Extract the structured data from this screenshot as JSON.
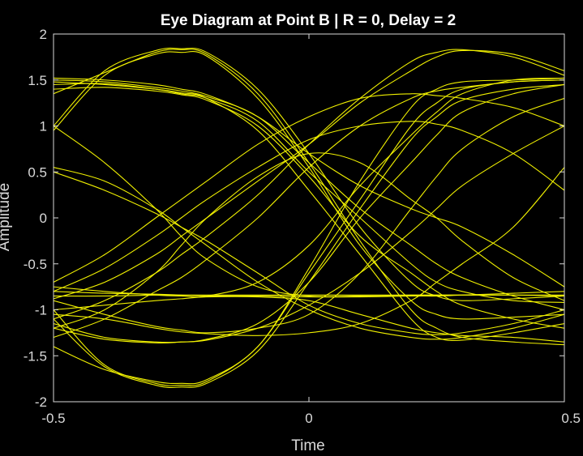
{
  "chart_data": {
    "type": "line",
    "title": "Eye Diagram at Point B | R = 0, Delay = 2",
    "xlabel": "Time",
    "ylabel": "Amplitude",
    "xlim": [
      -0.5,
      0.5
    ],
    "ylim": [
      -2,
      2
    ],
    "xticks": [
      "-0.5",
      "0",
      "0.5"
    ],
    "yticks": [
      "-2",
      "-1.5",
      "-1",
      "-0.5",
      "0",
      "0.5",
      "1",
      "1.5",
      "2"
    ],
    "grid": false,
    "legend": "none",
    "colors": {
      "background": "#000000",
      "trace": "#f0f000",
      "axes": "#d9d9d9"
    },
    "x": [
      -0.5,
      -0.4,
      -0.3,
      -0.25,
      -0.2,
      -0.1,
      0.0,
      0.1,
      0.2,
      0.25,
      0.3,
      0.4,
      0.5
    ],
    "series": [
      {
        "values": [
          1.0,
          1.6,
          1.82,
          1.84,
          1.8,
          1.4,
          0.7,
          -0.1,
          -0.7,
          -0.85,
          -0.9,
          -0.88,
          -0.85
        ]
      },
      {
        "values": [
          0.95,
          1.55,
          1.78,
          1.8,
          1.76,
          1.3,
          0.55,
          -0.3,
          -0.9,
          -1.05,
          -1.1,
          -1.08,
          -1.05
        ]
      },
      {
        "values": [
          1.35,
          1.58,
          1.8,
          1.83,
          1.78,
          1.35,
          0.6,
          -0.25,
          -1.0,
          -1.2,
          -1.3,
          -1.35,
          -1.38
        ]
      },
      {
        "values": [
          1.5,
          1.48,
          1.42,
          1.38,
          1.32,
          1.1,
          0.6,
          0.1,
          -0.3,
          -0.5,
          -0.65,
          -0.85,
          -1.0
        ]
      },
      {
        "values": [
          1.45,
          1.46,
          1.4,
          1.35,
          1.3,
          1.05,
          0.5,
          0.0,
          -0.5,
          -0.7,
          -0.8,
          -0.9,
          -0.92
        ]
      },
      {
        "values": [
          1.52,
          1.5,
          1.45,
          1.4,
          1.34,
          1.1,
          0.7,
          0.35,
          0.1,
          0.0,
          -0.1,
          -0.4,
          -0.75
        ]
      },
      {
        "values": [
          1.4,
          1.42,
          1.38,
          1.34,
          1.28,
          1.0,
          0.45,
          -0.2,
          -0.6,
          -0.8,
          -0.95,
          -1.1,
          -1.2
        ]
      },
      {
        "values": [
          1.48,
          1.45,
          1.4,
          1.36,
          1.3,
          0.95,
          0.3,
          -0.4,
          -1.1,
          -1.3,
          -1.33,
          -1.25,
          -1.15
        ]
      },
      {
        "values": [
          0.55,
          0.4,
          0.1,
          -0.1,
          -0.3,
          -0.7,
          -1.0,
          -1.2,
          -1.3,
          -1.32,
          -1.3,
          -1.2,
          -1.05
        ]
      },
      {
        "values": [
          1.0,
          0.6,
          0.1,
          -0.2,
          -0.45,
          -0.75,
          -0.85,
          -0.85,
          -0.84,
          -0.84,
          -0.84,
          -0.84,
          -0.84
        ]
      },
      {
        "values": [
          -0.85,
          -0.85,
          -0.84,
          -0.84,
          -0.84,
          -0.84,
          -0.84,
          -0.84,
          -0.84,
          -0.84,
          -0.84,
          -0.84,
          -0.85
        ]
      },
      {
        "values": [
          -0.8,
          -0.82,
          -0.83,
          -0.84,
          -0.85,
          -0.85,
          -0.86,
          -0.86,
          -0.85,
          -0.85,
          -0.84,
          -0.82,
          -0.8
        ]
      },
      {
        "values": [
          -1.0,
          -1.6,
          -1.8,
          -1.82,
          -1.78,
          -1.4,
          -0.6,
          0.2,
          1.0,
          1.25,
          1.4,
          1.48,
          1.5
        ]
      },
      {
        "values": [
          -1.1,
          -1.62,
          -1.82,
          -1.84,
          -1.8,
          -1.45,
          -0.7,
          0.1,
          0.85,
          1.1,
          1.28,
          1.4,
          1.45
        ]
      },
      {
        "values": [
          -1.4,
          -1.65,
          -1.78,
          -1.8,
          -1.76,
          -1.4,
          -0.55,
          0.4,
          1.2,
          1.4,
          1.48,
          1.5,
          1.52
        ]
      },
      {
        "values": [
          -1.15,
          -1.3,
          -1.35,
          -1.35,
          -1.32,
          -1.15,
          -0.7,
          0.0,
          0.6,
          0.9,
          1.15,
          1.35,
          1.45
        ]
      },
      {
        "values": [
          -1.2,
          -1.32,
          -1.36,
          -1.35,
          -1.33,
          -1.2,
          -0.95,
          -0.6,
          -0.15,
          0.1,
          0.35,
          0.7,
          1.0
        ]
      },
      {
        "values": [
          -0.9,
          -1.05,
          -1.18,
          -1.22,
          -1.25,
          -1.2,
          -1.05,
          -0.6,
          0.1,
          0.45,
          0.75,
          1.1,
          1.3
        ]
      },
      {
        "values": [
          -1.05,
          -1.1,
          -1.2,
          -1.24,
          -1.26,
          -1.28,
          -1.25,
          -1.15,
          -0.9,
          -0.7,
          -0.5,
          -0.1,
          0.55
        ]
      },
      {
        "values": [
          -0.7,
          -0.4,
          0.0,
          0.2,
          0.4,
          0.8,
          1.1,
          1.3,
          1.35,
          1.33,
          1.3,
          1.2,
          1.0
        ]
      },
      {
        "values": [
          -0.8,
          -0.55,
          -0.2,
          0.0,
          0.2,
          0.55,
          0.85,
          1.0,
          1.05,
          1.02,
          0.95,
          0.7,
          0.3
        ]
      },
      {
        "values": [
          -0.88,
          -0.7,
          -0.4,
          -0.2,
          0.0,
          0.4,
          0.8,
          1.25,
          1.6,
          1.75,
          1.82,
          1.78,
          1.6
        ]
      },
      {
        "values": [
          -1.1,
          -0.9,
          -0.6,
          -0.4,
          -0.2,
          0.25,
          0.8,
          1.3,
          1.7,
          1.8,
          1.83,
          1.75,
          1.55
        ]
      },
      {
        "values": [
          -1.3,
          -1.1,
          -0.8,
          -0.65,
          -0.45,
          0.0,
          0.55,
          1.0,
          1.3,
          1.38,
          1.42,
          1.48,
          1.5
        ]
      },
      {
        "values": [
          -0.75,
          -0.8,
          -0.84,
          -0.85,
          -0.85,
          -0.7,
          -0.3,
          0.35,
          0.9,
          1.15,
          1.35,
          1.5,
          1.52
        ]
      },
      {
        "values": [
          -1.0,
          -0.95,
          -0.9,
          -0.88,
          -0.86,
          -0.86,
          -0.9,
          -1.05,
          -1.2,
          -1.25,
          -1.28,
          -1.3,
          -1.35
        ]
      },
      {
        "values": [
          -1.2,
          -1.0,
          -0.6,
          -0.3,
          0.0,
          0.45,
          0.7,
          0.6,
          0.2,
          0.0,
          -0.25,
          -0.65,
          -0.9
        ]
      },
      {
        "values": [
          0.5,
          0.3,
          0.05,
          -0.1,
          -0.25,
          -0.6,
          -0.95,
          -1.15,
          -1.25,
          -1.27,
          -1.25,
          -1.15,
          -1.0
        ]
      }
    ]
  }
}
